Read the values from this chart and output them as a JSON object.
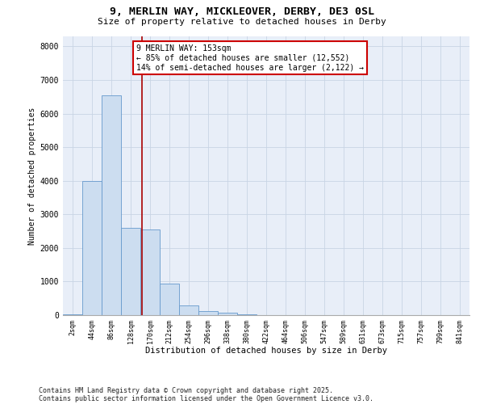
{
  "title1": "9, MERLIN WAY, MICKLEOVER, DERBY, DE3 0SL",
  "title2": "Size of property relative to detached houses in Derby",
  "xlabel": "Distribution of detached houses by size in Derby",
  "ylabel": "Number of detached properties",
  "categories": [
    "2sqm",
    "44sqm",
    "86sqm",
    "128sqm",
    "170sqm",
    "212sqm",
    "254sqm",
    "296sqm",
    "338sqm",
    "380sqm",
    "422sqm",
    "464sqm",
    "506sqm",
    "547sqm",
    "589sqm",
    "631sqm",
    "673sqm",
    "715sqm",
    "757sqm",
    "799sqm",
    "841sqm"
  ],
  "bar_values": [
    30,
    4000,
    6550,
    2600,
    2550,
    950,
    300,
    130,
    80,
    30,
    10,
    0,
    0,
    0,
    0,
    0,
    0,
    0,
    0,
    0,
    0
  ],
  "bar_color": "#ccddf0",
  "bar_edge_color": "#6699cc",
  "grid_color": "#c8d4e4",
  "background_color": "#e8eef8",
  "vline_color": "#aa0000",
  "vline_x": 3.58,
  "annotation_text": "9 MERLIN WAY: 153sqm\n← 85% of detached houses are smaller (12,552)\n14% of semi-detached houses are larger (2,122) →",
  "annotation_box_color": "#ffffff",
  "annotation_box_edge": "#cc0000",
  "ylim": [
    0,
    8300
  ],
  "yticks": [
    0,
    1000,
    2000,
    3000,
    4000,
    5000,
    6000,
    7000,
    8000
  ],
  "footnote1": "Contains HM Land Registry data © Crown copyright and database right 2025.",
  "footnote2": "Contains public sector information licensed under the Open Government Licence v3.0."
}
